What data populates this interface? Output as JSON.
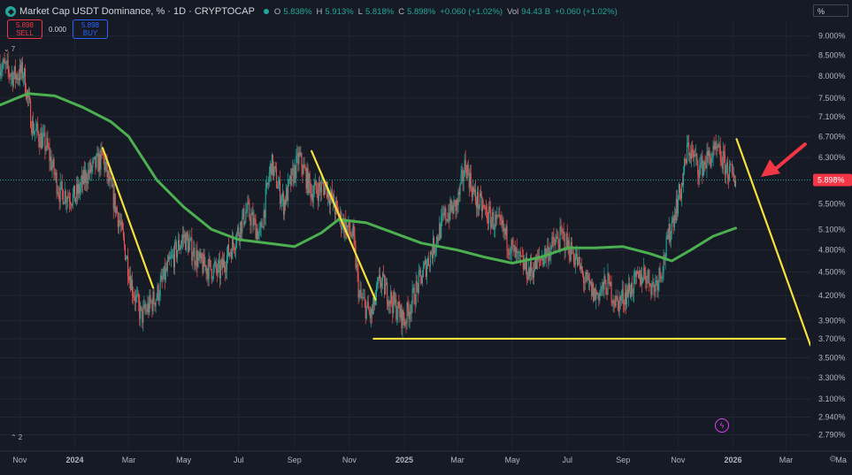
{
  "header": {
    "title": "Market Cap USDT Dominance, % · 1D · CRYPTOCAP",
    "ohlc": [
      {
        "k": "O",
        "v": "5.838%"
      },
      {
        "k": "H",
        "v": "5.913%"
      },
      {
        "k": "L",
        "v": "5.818%"
      },
      {
        "k": "C",
        "v": "5.898%"
      },
      {
        "k": "",
        "v": "+0.060 (+1.02%)"
      },
      {
        "k": "Vol",
        "v": "94.43 B"
      },
      {
        "k": "",
        "v": "+0.060 (+1.02%)"
      }
    ]
  },
  "trade": {
    "sell_price": "5.898",
    "sell_label": "SELL",
    "spread": "0.000",
    "buy_price": "5.898",
    "buy_label": "BUY"
  },
  "indicators_collapsed": "7",
  "bottom_indicator_count": "2",
  "price_scale_unit": "%",
  "last_price_label": "5.898%",
  "colors": {
    "up": "#26a69a",
    "down": "#ef5350",
    "ma": "#4caf50",
    "annotation": "#f5e13c",
    "arrow": "#f23645",
    "price_tag": "#f23645"
  },
  "chart_data": {
    "type": "candlestick",
    "title": "Market Cap USDT Dominance, % · 1D · CRYPTOCAP",
    "y_scale": "log",
    "ylim": [
      2.66,
      9.4
    ],
    "y_ticks": [
      "9.000%",
      "8.500%",
      "8.000%",
      "7.500%",
      "7.100%",
      "6.700%",
      "6.300%",
      "5.898%",
      "5.500%",
      "5.100%",
      "4.800%",
      "4.500%",
      "4.200%",
      "3.900%",
      "3.700%",
      "3.500%",
      "3.300%",
      "3.100%",
      "2.940%",
      "2.790%"
    ],
    "y_tick_values": [
      9.0,
      8.5,
      8.0,
      7.5,
      7.1,
      6.7,
      6.3,
      5.898,
      5.5,
      5.1,
      4.8,
      4.5,
      4.2,
      3.9,
      3.7,
      3.5,
      3.3,
      3.1,
      2.94,
      2.79
    ],
    "xlim": [
      "2023-10-10",
      "2026-03-28"
    ],
    "x_ticks": [
      {
        "label": "Nov",
        "date": "2023-11-01"
      },
      {
        "label": "2024",
        "date": "2024-01-01"
      },
      {
        "label": "Mar",
        "date": "2024-03-01"
      },
      {
        "label": "May",
        "date": "2024-05-01"
      },
      {
        "label": "Jul",
        "date": "2024-07-01"
      },
      {
        "label": "Sep",
        "date": "2024-09-01"
      },
      {
        "label": "Nov",
        "date": "2024-11-01"
      },
      {
        "label": "2025",
        "date": "2025-01-01"
      },
      {
        "label": "Mar",
        "date": "2025-03-01"
      },
      {
        "label": "May",
        "date": "2025-05-01"
      },
      {
        "label": "Jul",
        "date": "2025-07-01"
      },
      {
        "label": "Sep",
        "date": "2025-09-01"
      },
      {
        "label": "Nov",
        "date": "2025-11-01"
      },
      {
        "label": "2026",
        "date": "2026-01-01"
      },
      {
        "label": "Mar",
        "date": "2026-03-01"
      },
      {
        "label": "Ma",
        "date": "2026-05-01"
      }
    ],
    "price_path": [
      {
        "date": "2023-10-10",
        "value": 8.3
      },
      {
        "date": "2023-10-25",
        "value": 8.0
      },
      {
        "date": "2023-11-05",
        "value": 8.1
      },
      {
        "date": "2023-11-15",
        "value": 6.9
      },
      {
        "date": "2023-12-01",
        "value": 6.5
      },
      {
        "date": "2023-12-15",
        "value": 5.7
      },
      {
        "date": "2024-01-01",
        "value": 5.6
      },
      {
        "date": "2024-01-15",
        "value": 6.0
      },
      {
        "date": "2024-02-01",
        "value": 6.3
      },
      {
        "date": "2024-02-20",
        "value": 5.2
      },
      {
        "date": "2024-03-05",
        "value": 4.3
      },
      {
        "date": "2024-03-15",
        "value": 3.95
      },
      {
        "date": "2024-04-01",
        "value": 4.2
      },
      {
        "date": "2024-04-15",
        "value": 4.6
      },
      {
        "date": "2024-05-01",
        "value": 5.0
      },
      {
        "date": "2024-05-20",
        "value": 4.6
      },
      {
        "date": "2024-06-10",
        "value": 4.5
      },
      {
        "date": "2024-06-25",
        "value": 4.9
      },
      {
        "date": "2024-07-10",
        "value": 5.4
      },
      {
        "date": "2024-07-25",
        "value": 5.0
      },
      {
        "date": "2024-08-06",
        "value": 6.2
      },
      {
        "date": "2024-08-20",
        "value": 5.5
      },
      {
        "date": "2024-09-06",
        "value": 6.3
      },
      {
        "date": "2024-09-20",
        "value": 5.7
      },
      {
        "date": "2024-10-06",
        "value": 5.8
      },
      {
        "date": "2024-10-20",
        "value": 5.3
      },
      {
        "date": "2024-11-05",
        "value": 5.0
      },
      {
        "date": "2024-11-12",
        "value": 4.2
      },
      {
        "date": "2024-11-25",
        "value": 3.95
      },
      {
        "date": "2024-12-05",
        "value": 4.4
      },
      {
        "date": "2024-12-20",
        "value": 4.1
      },
      {
        "date": "2025-01-01",
        "value": 3.9
      },
      {
        "date": "2025-01-15",
        "value": 4.3
      },
      {
        "date": "2025-02-01",
        "value": 4.8
      },
      {
        "date": "2025-02-15",
        "value": 5.3
      },
      {
        "date": "2025-03-01",
        "value": 5.5
      },
      {
        "date": "2025-03-10",
        "value": 6.2
      },
      {
        "date": "2025-03-20",
        "value": 5.6
      },
      {
        "date": "2025-04-05",
        "value": 5.3
      },
      {
        "date": "2025-04-20",
        "value": 5.1
      },
      {
        "date": "2025-05-05",
        "value": 4.7
      },
      {
        "date": "2025-05-20",
        "value": 4.5
      },
      {
        "date": "2025-06-10",
        "value": 4.8
      },
      {
        "date": "2025-06-25",
        "value": 5.0
      },
      {
        "date": "2025-07-10",
        "value": 4.7
      },
      {
        "date": "2025-07-20",
        "value": 4.4
      },
      {
        "date": "2025-08-01",
        "value": 4.2
      },
      {
        "date": "2025-08-15",
        "value": 4.35
      },
      {
        "date": "2025-08-25",
        "value": 4.1
      },
      {
        "date": "2025-09-10",
        "value": 4.3
      },
      {
        "date": "2025-09-25",
        "value": 4.5
      },
      {
        "date": "2025-10-05",
        "value": 4.3
      },
      {
        "date": "2025-10-15",
        "value": 4.6
      },
      {
        "date": "2025-10-25",
        "value": 5.2
      },
      {
        "date": "2025-11-05",
        "value": 5.8
      },
      {
        "date": "2025-11-12",
        "value": 6.5
      },
      {
        "date": "2025-11-25",
        "value": 6.1
      },
      {
        "date": "2025-12-05",
        "value": 6.3
      },
      {
        "date": "2025-12-15",
        "value": 6.4
      },
      {
        "date": "2025-12-25",
        "value": 6.1
      },
      {
        "date": "2026-01-04",
        "value": 5.898
      }
    ],
    "series": [
      {
        "type": "line",
        "points": [
          {
            "date": "2023-10-10",
            "value": 7.35
          },
          {
            "date": "2023-11-10",
            "value": 7.6
          },
          {
            "date": "2023-12-10",
            "value": 7.55
          },
          {
            "date": "2024-01-10",
            "value": 7.3
          },
          {
            "date": "2024-02-10",
            "value": 7.0
          },
          {
            "date": "2024-03-01",
            "value": 6.7
          },
          {
            "date": "2024-04-01",
            "value": 5.9
          },
          {
            "date": "2024-05-01",
            "value": 5.45
          },
          {
            "date": "2024-06-01",
            "value": 5.1
          },
          {
            "date": "2024-07-01",
            "value": 4.95
          },
          {
            "date": "2024-08-01",
            "value": 4.9
          },
          {
            "date": "2024-09-01",
            "value": 4.85
          },
          {
            "date": "2024-10-01",
            "value": 5.05
          },
          {
            "date": "2024-10-20",
            "value": 5.25
          },
          {
            "date": "2024-11-20",
            "value": 5.2
          },
          {
            "date": "2024-12-20",
            "value": 5.05
          },
          {
            "date": "2025-01-20",
            "value": 4.9
          },
          {
            "date": "2025-03-01",
            "value": 4.8
          },
          {
            "date": "2025-04-01",
            "value": 4.7
          },
          {
            "date": "2025-05-01",
            "value": 4.62
          },
          {
            "date": "2025-06-01",
            "value": 4.7
          },
          {
            "date": "2025-07-01",
            "value": 4.83
          },
          {
            "date": "2025-08-01",
            "value": 4.83
          },
          {
            "date": "2025-09-01",
            "value": 4.85
          },
          {
            "date": "2025-10-01",
            "value": 4.75
          },
          {
            "date": "2025-10-25",
            "value": 4.65
          },
          {
            "date": "2025-11-15",
            "value": 4.8
          },
          {
            "date": "2025-12-10",
            "value": 5.0
          },
          {
            "date": "2026-01-04",
            "value": 5.12
          }
        ]
      }
    ],
    "annotations": [
      {
        "type": "trendline",
        "from": {
          "date": "2024-02-01",
          "value": 6.48
        },
        "to": {
          "date": "2024-03-28",
          "value": 4.3
        }
      },
      {
        "type": "trendline",
        "from": {
          "date": "2024-09-20",
          "value": 6.42
        },
        "to": {
          "date": "2024-11-30",
          "value": 4.15
        }
      },
      {
        "type": "horizontal",
        "from": {
          "date": "2024-11-28",
          "value": 3.7
        },
        "to": {
          "date": "2026-02-28",
          "value": 3.7
        }
      },
      {
        "type": "trendline",
        "from": {
          "date": "2026-01-05",
          "value": 6.65
        },
        "to": {
          "date": "2026-03-28",
          "value": 3.63
        }
      },
      {
        "type": "arrow",
        "from": {
          "date": "2026-03-22",
          "value": 6.55
        },
        "to": {
          "date": "2026-02-01",
          "value": 5.95
        }
      }
    ],
    "grid": true
  }
}
